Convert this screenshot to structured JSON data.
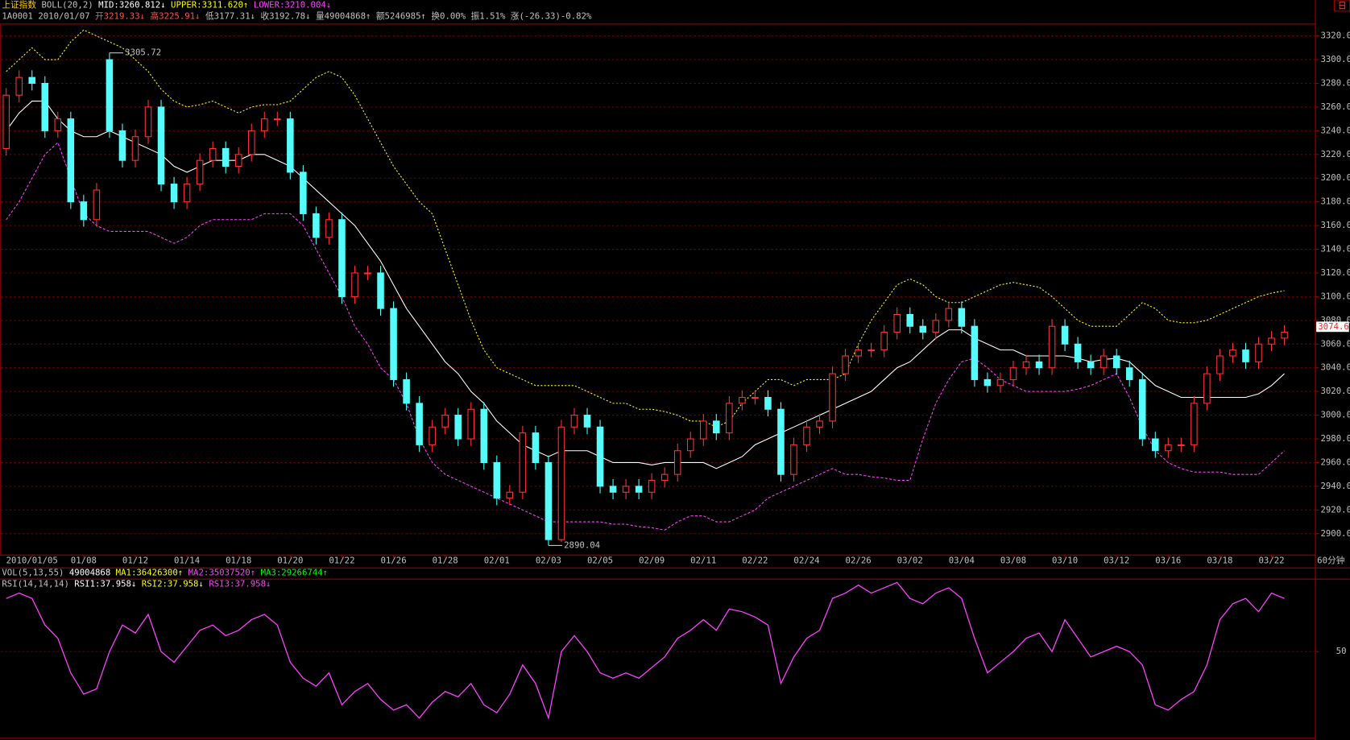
{
  "header": {
    "line1": [
      {
        "text": "上证指数",
        "color": "#ffcc00"
      },
      {
        "text": "BOLL(20,2)",
        "color": "#c0c0c0"
      },
      {
        "text": "MID:3260.812↓",
        "color": "#ffffff"
      },
      {
        "text": "UPPER:3311.620↑",
        "color": "#ffff00"
      },
      {
        "text": "LOWER:3210.004↓",
        "color": "#ff40ff"
      }
    ],
    "line2": [
      {
        "text": "1A0001",
        "color": "#c0c0c0"
      },
      {
        "text": "2010/01/07",
        "color": "#c0c0c0"
      },
      {
        "text": "开3219.33↓",
        "color": "#ff5050"
      },
      {
        "text": "高3225.91↓",
        "color": "#ff5050"
      },
      {
        "text": "低3177.31↓",
        "color": "#c0c0c0"
      },
      {
        "text": "收3192.78↓",
        "color": "#c0c0c0"
      },
      {
        "text": "量49004868↑",
        "color": "#c0c0c0"
      },
      {
        "text": "额5246985↑",
        "color": "#c0c0c0"
      },
      {
        "text": "换0.00%",
        "color": "#c0c0c0"
      },
      {
        "text": "振1.51%",
        "color": "#c0c0c0"
      },
      {
        "text": "涨(-26.33)-0.82%",
        "color": "#c0c0c0"
      }
    ],
    "vol": [
      {
        "text": "VOL(5,13,55)",
        "color": "#c0c0c0"
      },
      {
        "text": "49004868",
        "color": "#ffffff"
      },
      {
        "text": "MA1:36426300↑",
        "color": "#ffff00"
      },
      {
        "text": "MA2:35037520↑",
        "color": "#ff40ff"
      },
      {
        "text": "MA3:29266744↑",
        "color": "#00ff00"
      }
    ],
    "rsi": [
      {
        "text": "RSI(14,14,14)",
        "color": "#c0c0c0"
      },
      {
        "text": "RSI1:37.958↓",
        "color": "#ffffff"
      },
      {
        "text": "RSI2:37.958↓",
        "color": "#ffff00"
      },
      {
        "text": "RSI3:37.958↓",
        "color": "#ff40ff"
      }
    ],
    "toolbar": "日"
  },
  "chart_data": [
    {
      "type": "candlestick",
      "period": "60分钟",
      "categories": [
        null,
        null,
        "2010/01/05",
        null,
        null,
        null,
        "01/08",
        null,
        null,
        null,
        "01/12",
        null,
        null,
        null,
        "01/14",
        null,
        null,
        null,
        "01/18",
        null,
        null,
        null,
        "01/20",
        null,
        null,
        null,
        "01/22",
        null,
        null,
        null,
        "01/26",
        null,
        null,
        null,
        "01/28",
        null,
        null,
        null,
        "02/01",
        null,
        null,
        null,
        "02/03",
        null,
        null,
        null,
        "02/05",
        null,
        null,
        null,
        "02/09",
        null,
        null,
        null,
        "02/11",
        null,
        null,
        null,
        "02/22",
        null,
        null,
        null,
        "02/24",
        null,
        null,
        null,
        "02/26",
        null,
        null,
        null,
        "03/02",
        null,
        null,
        null,
        "03/04",
        null,
        null,
        null,
        "03/08",
        null,
        null,
        null,
        "03/10",
        null,
        null,
        null,
        "03/12",
        null,
        null,
        null,
        "03/16",
        null,
        null,
        null,
        "03/18",
        null,
        null,
        null,
        "03/22",
        null
      ],
      "open": [
        3225,
        3270,
        3285,
        3280,
        3240,
        3250,
        3180,
        3165,
        3300,
        3240,
        3215,
        3235,
        3260,
        3195,
        3180,
        3195,
        3215,
        3225,
        3210,
        3220,
        3240,
        3250,
        3250,
        3205,
        3170,
        3150,
        3165,
        3100,
        3120,
        3120,
        3090,
        3030,
        3010,
        2975,
        2990,
        3000,
        2980,
        3005,
        2960,
        2930,
        2935,
        2985,
        2960,
        2895,
        2990,
        3000,
        2990,
        2940,
        2935,
        2940,
        2935,
        2945,
        2950,
        2970,
        2980,
        2995,
        2985,
        3010,
        3015,
        3015,
        3005,
        2950,
        2975,
        2990,
        2995,
        3035,
        3050,
        3055,
        3055,
        3070,
        3085,
        3075,
        3070,
        3080,
        3090,
        3075,
        3030,
        3025,
        3030,
        3040,
        3045,
        3040,
        3075,
        3060,
        3045,
        3040,
        3050,
        3040,
        3030,
        2980,
        2970,
        2975,
        2975,
        3010,
        3035,
        3050,
        3055,
        3045,
        3060,
        3065
      ],
      "high": [
        3276,
        3291,
        3291,
        3286,
        3256,
        3256,
        3186,
        3196,
        3305.72,
        3246,
        3241,
        3266,
        3266,
        3201,
        3201,
        3221,
        3231,
        3231,
        3226,
        3246,
        3256,
        3256,
        3256,
        3211,
        3176,
        3171,
        3171,
        3126,
        3126,
        3126,
        3096,
        3036,
        3016,
        2996,
        3006,
        3006,
        3011,
        3011,
        2966,
        2941,
        2991,
        2991,
        2966,
        2996,
        3006,
        3006,
        2996,
        2946,
        2946,
        2946,
        2951,
        2956,
        2976,
        2986,
        3001,
        3001,
        3016,
        3021,
        3021,
        3021,
        3011,
        2981,
        2996,
        3001,
        3041,
        3056,
        3061,
        3061,
        3076,
        3091,
        3091,
        3081,
        3086,
        3096,
        3096,
        3081,
        3036,
        3036,
        3046,
        3051,
        3051,
        3081,
        3081,
        3066,
        3051,
        3056,
        3056,
        3046,
        3036,
        2986,
        2981,
        2981,
        3016,
        3041,
        3056,
        3061,
        3061,
        3066,
        3071,
        3076
      ],
      "low": [
        3219,
        3264,
        3274,
        3234,
        3234,
        3174,
        3159,
        3159,
        3234,
        3209,
        3209,
        3229,
        3189,
        3174,
        3174,
        3189,
        3209,
        3204,
        3204,
        3214,
        3234,
        3244,
        3199,
        3164,
        3144,
        3144,
        3094,
        3094,
        3114,
        3084,
        3024,
        3004,
        2969,
        2969,
        2984,
        2974,
        2974,
        2954,
        2924,
        2924,
        2929,
        2954,
        2890.04,
        2893,
        2984,
        2984,
        2934,
        2929,
        2929,
        2929,
        2929,
        2939,
        2944,
        2964,
        2974,
        2979,
        2979,
        3004,
        3009,
        2999,
        2944,
        2944,
        2969,
        2984,
        2989,
        3029,
        3044,
        3049,
        3049,
        3064,
        3069,
        3064,
        3064,
        3074,
        3069,
        3024,
        3019,
        3019,
        3024,
        3034,
        3034,
        3034,
        3054,
        3039,
        3034,
        3034,
        3034,
        3024,
        2974,
        2964,
        2964,
        2969,
        2969,
        3004,
        3029,
        3044,
        3039,
        3039,
        3054,
        3059
      ],
      "close": [
        3270,
        3285,
        3280,
        3240,
        3250,
        3180,
        3165,
        3190,
        3240,
        3215,
        3235,
        3260,
        3195,
        3180,
        3195,
        3215,
        3225,
        3210,
        3220,
        3240,
        3250,
        3250,
        3205,
        3170,
        3150,
        3165,
        3100,
        3120,
        3120,
        3090,
        3030,
        3010,
        2975,
        2990,
        3000,
        2980,
        3005,
        2960,
        2930,
        2935,
        2985,
        2960,
        2895,
        2990,
        3000,
        2990,
        2940,
        2935,
        2940,
        2935,
        2945,
        2950,
        2970,
        2980,
        2995,
        2985,
        3010,
        3015,
        3015,
        3005,
        2950,
        2975,
        2990,
        2995,
        3035,
        3050,
        3055,
        3055,
        3070,
        3085,
        3075,
        3070,
        3080,
        3090,
        3075,
        3030,
        3025,
        3030,
        3040,
        3045,
        3040,
        3075,
        3060,
        3045,
        3040,
        3050,
        3040,
        3030,
        2980,
        2970,
        2975,
        2975,
        3010,
        3035,
        3050,
        3055,
        3045,
        3060,
        3065,
        3070
      ],
      "up_color": "#ff3232",
      "down_color": "#54fcfc",
      "bands": [
        {
          "color": "#ffffff",
          "dash": "none",
          "values": [
            3240,
            3255,
            3265,
            3265,
            3250,
            3240,
            3235,
            3235,
            3240,
            3235,
            3230,
            3225,
            3220,
            3210,
            3205,
            3210,
            3215,
            3215,
            3215,
            3220,
            3220,
            3215,
            3210,
            3200,
            3190,
            3180,
            3170,
            3160,
            3145,
            3130,
            3110,
            3090,
            3075,
            3060,
            3045,
            3035,
            3020,
            3010,
            2995,
            2985,
            2975,
            2970,
            2965,
            2970,
            2970,
            2970,
            2965,
            2960,
            2960,
            2960,
            2958,
            2960,
            2960,
            2960,
            2960,
            2955,
            2960,
            2965,
            2975,
            2980,
            2985,
            2990,
            2995,
            3000,
            3005,
            3010,
            3015,
            3020,
            3030,
            3040,
            3045,
            3055,
            3065,
            3072,
            3072,
            3065,
            3060,
            3055,
            3055,
            3050,
            3050,
            3050,
            3050,
            3048,
            3045,
            3047,
            3048,
            3045,
            3035,
            3025,
            3020,
            3015,
            3015,
            3015,
            3015,
            3015,
            3015,
            3018,
            3025,
            3035
          ]
        },
        {
          "color": "#ffff00",
          "dash": "2 2",
          "values": [
            3290,
            3300,
            3310,
            3300,
            3300,
            3315,
            3325,
            3320,
            3315,
            3310,
            3300,
            3290,
            3275,
            3265,
            3260,
            3262,
            3265,
            3260,
            3255,
            3260,
            3262,
            3262,
            3265,
            3275,
            3285,
            3290,
            3285,
            3270,
            3250,
            3230,
            3210,
            3195,
            3180,
            3170,
            3140,
            3110,
            3080,
            3055,
            3040,
            3035,
            3030,
            3025,
            3025,
            3025,
            3025,
            3020,
            3015,
            3010,
            3010,
            3005,
            3005,
            3003,
            3000,
            2995,
            2995,
            2990,
            2995,
            3010,
            3020,
            3030,
            3030,
            3025,
            3030,
            3030,
            3030,
            3035,
            3060,
            3080,
            3095,
            3110,
            3115,
            3110,
            3100,
            3095,
            3095,
            3100,
            3105,
            3110,
            3112,
            3110,
            3108,
            3100,
            3090,
            3080,
            3075,
            3075,
            3075,
            3085,
            3095,
            3090,
            3080,
            3078,
            3078,
            3080,
            3085,
            3090,
            3095,
            3100,
            3103,
            3105
          ]
        },
        {
          "color": "#ff40ff",
          "dash": "3 2",
          "values": [
            3165,
            3180,
            3200,
            3220,
            3230,
            3200,
            3170,
            3160,
            3155,
            3155,
            3155,
            3155,
            3150,
            3145,
            3150,
            3160,
            3165,
            3165,
            3165,
            3165,
            3170,
            3170,
            3170,
            3160,
            3140,
            3120,
            3100,
            3075,
            3060,
            3040,
            3030,
            3010,
            2980,
            2960,
            2950,
            2945,
            2940,
            2935,
            2930,
            2925,
            2920,
            2915,
            2910,
            2910,
            2910,
            2910,
            2910,
            2908,
            2908,
            2906,
            2905,
            2903,
            2910,
            2915,
            2915,
            2910,
            2910,
            2915,
            2920,
            2930,
            2935,
            2940,
            2945,
            2950,
            2955,
            2950,
            2950,
            2948,
            2947,
            2945,
            2945,
            2980,
            3010,
            3030,
            3045,
            3048,
            3040,
            3030,
            3025,
            3020,
            3020,
            3020,
            3020,
            3022,
            3025,
            3030,
            3035,
            3015,
            2990,
            2970,
            2960,
            2955,
            2952,
            2952,
            2952,
            2950,
            2950,
            2950,
            2960,
            2970
          ]
        }
      ],
      "high_mark": 3305.72,
      "low_mark": 2890.04,
      "last_price": 3074.6,
      "ylim": [
        2882,
        3330
      ],
      "yticks": [
        {
          "value": 2900,
          "label": "2900.0"
        },
        {
          "value": 2920,
          "label": "2920.0"
        },
        {
          "value": 2940,
          "label": "2940.0"
        },
        {
          "value": 2960,
          "label": "2960.0"
        },
        {
          "value": 2980,
          "label": "2980.0"
        },
        {
          "value": 3000,
          "label": "3000.0"
        },
        {
          "value": 3020,
          "label": "3020.0"
        },
        {
          "value": 3040,
          "label": "3040.0"
        },
        {
          "value": 3060,
          "label": "3060.0"
        },
        {
          "value": 3080,
          "label": "3080.0"
        },
        {
          "value": 3100,
          "label": "3100.0"
        },
        {
          "value": 3120,
          "label": "3120.0"
        },
        {
          "value": 3140,
          "label": "3140.0"
        },
        {
          "value": 3160,
          "label": "3160.0"
        },
        {
          "value": 3180,
          "label": "3180.0"
        },
        {
          "value": 3200,
          "label": "3200.0"
        },
        {
          "value": 3220,
          "label": "3220.0"
        },
        {
          "value": 3240,
          "label": "3240.0"
        },
        {
          "value": 3260,
          "label": "3260.0"
        },
        {
          "value": 3280,
          "label": "3280.0"
        },
        {
          "value": 3300,
          "label": "3300.0"
        },
        {
          "value": 3320,
          "label": "3320.0"
        }
      ],
      "grid": true
    },
    {
      "type": "line",
      "color": "#ff40ff",
      "values": [
        70,
        72,
        70,
        60,
        55,
        42,
        34,
        36,
        50,
        60,
        57,
        64,
        50,
        46,
        52,
        58,
        60,
        56,
        58,
        62,
        64,
        60,
        46,
        40,
        37,
        42,
        30,
        35,
        38,
        32,
        28,
        30,
        25,
        31,
        35,
        33,
        38,
        30,
        27,
        34,
        45,
        38,
        25,
        50,
        56,
        50,
        42,
        40,
        42,
        40,
        44,
        48,
        55,
        58,
        62,
        58,
        66,
        65,
        63,
        60,
        38,
        48,
        55,
        58,
        70,
        72,
        75,
        72,
        74,
        76,
        70,
        68,
        72,
        74,
        70,
        55,
        42,
        46,
        50,
        55,
        57,
        50,
        62,
        55,
        48,
        50,
        52,
        50,
        45,
        30,
        28,
        32,
        35,
        45,
        62,
        68,
        70,
        65,
        72,
        70
      ],
      "ylim": [
        20,
        75
      ],
      "yticks": [
        50
      ],
      "grid": true
    }
  ]
}
